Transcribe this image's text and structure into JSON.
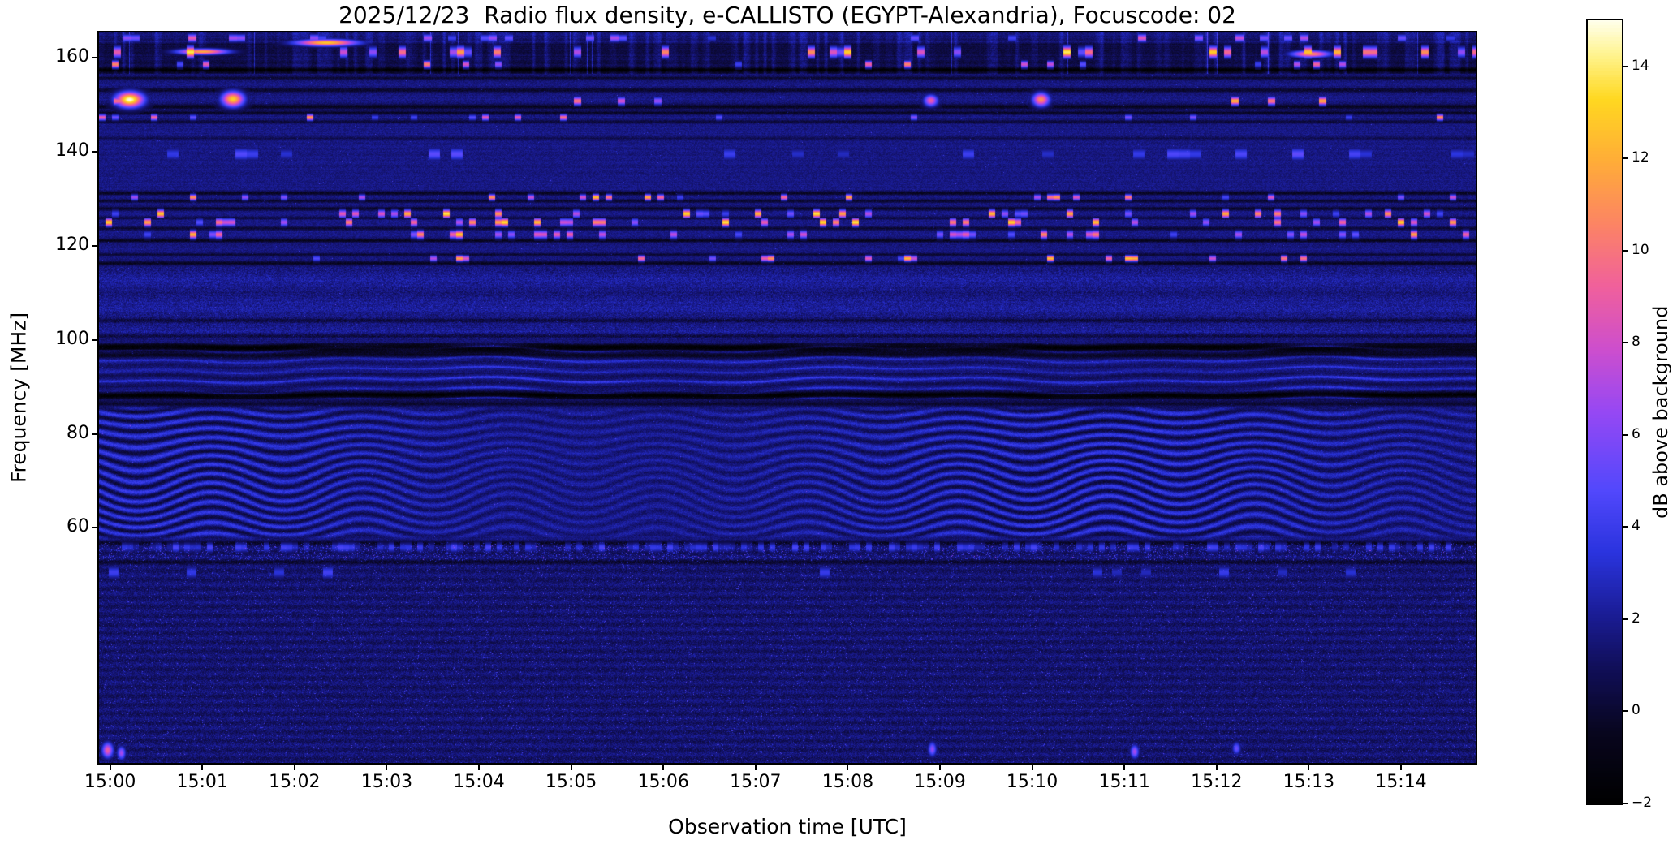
{
  "chart_data": {
    "type": "heatmap",
    "title": "2025/12/23  Radio flux density, e-CALLISTO (EGYPT-Alexandria), Focuscode: 02",
    "xlabel": "Observation time [UTC]",
    "ylabel": "Frequency [MHz]",
    "x_ticks": [
      "15:00",
      "15:01",
      "15:02",
      "15:03",
      "15:04",
      "15:05",
      "15:06",
      "15:07",
      "15:08",
      "15:09",
      "15:10",
      "15:11",
      "15:12",
      "15:13",
      "15:14"
    ],
    "y_ticks_mhz": [
      160,
      140,
      120,
      100,
      80,
      60
    ],
    "y_range_mhz": [
      10.0,
      165.4
    ],
    "time_axis": {
      "start_offset_min": 0.12,
      "duration_min": 14.93
    },
    "colorbar": {
      "label": "dB above background",
      "ticks": [
        14,
        12,
        10,
        8,
        6,
        4,
        2,
        0,
        -2
      ],
      "range": [
        -2,
        15
      ]
    },
    "features": {
      "background": {
        "base_db": 1.75,
        "noise_db": 1.1
      },
      "value_range_db": [
        -2,
        15
      ],
      "colormap_stops": [
        [
          0,
          [
            0,
            0,
            0
          ]
        ],
        [
          0.09,
          [
            8,
            6,
            30
          ]
        ],
        [
          0.17,
          [
            16,
            14,
            86
          ]
        ],
        [
          0.24,
          [
            26,
            28,
            148
          ]
        ],
        [
          0.32,
          [
            42,
            52,
            222
          ]
        ],
        [
          0.4,
          [
            82,
            72,
            252
          ]
        ],
        [
          0.5,
          [
            150,
            72,
            244
          ]
        ],
        [
          0.58,
          [
            205,
            78,
            205
          ]
        ],
        [
          0.66,
          [
            240,
            96,
            156
          ]
        ],
        [
          0.74,
          [
            252,
            132,
            100
          ]
        ],
        [
          0.82,
          [
            255,
            172,
            56
          ]
        ],
        [
          0.9,
          [
            255,
            216,
            32
          ]
        ],
        [
          0.96,
          [
            255,
            245,
            150
          ]
        ],
        [
          1,
          [
            255,
            255,
            236
          ]
        ]
      ],
      "rfi_dash_lines": [
        {
          "f": 164.3,
          "hw": 0.8,
          "density": 0.18,
          "cell": 10,
          "vmin": 3,
          "vmax": 9
        },
        {
          "f": 161.3,
          "hw": 1.1,
          "density": 0.16,
          "cell": 9,
          "vmin": 5,
          "vmax": 15
        },
        {
          "f": 158.7,
          "hw": 0.7,
          "density": 0.07,
          "cell": 8,
          "vmin": 4,
          "vmax": 11
        },
        {
          "f": 150.9,
          "hw": 0.8,
          "density": 0.06,
          "cell": 9,
          "vmin": 4,
          "vmax": 13
        },
        {
          "f": 147.4,
          "hw": 0.6,
          "density": 0.07,
          "cell": 8,
          "vmin": 4,
          "vmax": 12
        },
        {
          "f": 139.6,
          "hw": 1.3,
          "density": 0.12,
          "cell": 14,
          "vmin": 2.8,
          "vmax": 5.2
        },
        {
          "f": 130.4,
          "hw": 0.6,
          "density": 0.13,
          "cell": 8,
          "vmin": 4,
          "vmax": 13
        },
        {
          "f": 126.9,
          "hw": 0.8,
          "density": 0.2,
          "cell": 8,
          "vmin": 4,
          "vmax": 14
        },
        {
          "f": 125.1,
          "hw": 0.8,
          "density": 0.2,
          "cell": 8,
          "vmin": 4,
          "vmax": 14
        },
        {
          "f": 122.5,
          "hw": 0.8,
          "density": 0.16,
          "cell": 8,
          "vmin": 4,
          "vmax": 13
        },
        {
          "f": 117.4,
          "hw": 0.6,
          "density": 0.11,
          "cell": 8,
          "vmin": 4,
          "vmax": 13
        },
        {
          "f": 55.9,
          "hw": 1.0,
          "density": 0.45,
          "cell": 7,
          "vmin": 2.2,
          "vmax": 4.6
        },
        {
          "f": 50.6,
          "hw": 1.3,
          "density": 0.08,
          "cell": 12,
          "vmin": 2.4,
          "vmax": 4.4
        }
      ],
      "dark_lanes": [
        {
          "f": 157.5,
          "w": 0.5,
          "s": 2.2
        },
        {
          "f": 155.8,
          "w": 0.4,
          "s": 1.6
        },
        {
          "f": 153.2,
          "w": 0.5,
          "s": 1.8
        },
        {
          "f": 149.7,
          "w": 0.5,
          "s": 2.4
        },
        {
          "f": 148.4,
          "w": 0.4,
          "s": 2.0
        },
        {
          "f": 146.5,
          "w": 0.4,
          "s": 1.6
        },
        {
          "f": 143.0,
          "w": 0.4,
          "s": 1.0
        },
        {
          "f": 131.3,
          "w": 0.4,
          "s": 2.2
        },
        {
          "f": 129.6,
          "w": 0.35,
          "s": 1.8
        },
        {
          "f": 128.0,
          "w": 0.4,
          "s": 2.0
        },
        {
          "f": 126.0,
          "w": 0.3,
          "s": 1.5
        },
        {
          "f": 123.8,
          "w": 0.35,
          "s": 1.8
        },
        {
          "f": 121.2,
          "w": 0.45,
          "s": 2.2
        },
        {
          "f": 118.2,
          "w": 0.4,
          "s": 1.6
        },
        {
          "f": 116.4,
          "w": 0.45,
          "s": 2.2
        },
        {
          "f": 104.2,
          "w": 0.4,
          "s": 1.2
        },
        {
          "f": 100.9,
          "w": 0.5,
          "s": 1.6
        },
        {
          "f": 98.3,
          "w": 0.9,
          "s": 3.0
        },
        {
          "f": 96.8,
          "w": 0.5,
          "s": 1.6
        },
        {
          "f": 88.3,
          "w": 0.9,
          "s": 2.6
        },
        {
          "f": 86.5,
          "w": 0.5,
          "s": 1.8
        },
        {
          "f": 57.0,
          "w": 0.5,
          "s": 1.4
        },
        {
          "f": 52.8,
          "w": 0.5,
          "s": 1.1
        }
      ],
      "fm_broadcast_band": {
        "fmin_mhz": 87.4,
        "fmax_mhz": 99.4,
        "stripe_k": 2.9,
        "gain_db": 2.4
      },
      "mid_texture_band": {
        "fmin_mhz": 100.2,
        "fmax_mhz": 115.6,
        "gain_db": 1.25
      },
      "ionospheric_fringes": {
        "fmin_mhz": 57.3,
        "fmax_mhz": 86.2,
        "k": 3.05,
        "amp_db": 1.45,
        "wave1": 6.6,
        "wave1_rate": 58,
        "wave2": 2.8,
        "wave2_rate": 12.5
      },
      "top_band": {
        "fmin_mhz": 156.6,
        "base_db": 0.5,
        "streak_gain_db": 2.6
      },
      "low_band": {
        "fmax_mhz": 57.0,
        "base_db": 1.35
      },
      "bright_blobs": [
        {
          "t": 0.022,
          "f": 151.2,
          "wt": 0.01,
          "wf": 1.6,
          "v": 15
        },
        {
          "t": 0.097,
          "f": 151.3,
          "wt": 0.008,
          "wf": 1.6,
          "v": 13
        },
        {
          "t": 0.604,
          "f": 151.0,
          "wt": 0.005,
          "wf": 1.2,
          "v": 9
        },
        {
          "t": 0.684,
          "f": 151.2,
          "wt": 0.006,
          "wf": 1.4,
          "v": 11
        },
        {
          "t": 0.165,
          "f": 163.3,
          "wt": 0.022,
          "wf": 0.7,
          "v": 13
        },
        {
          "t": 0.075,
          "f": 161.4,
          "wt": 0.018,
          "wf": 0.6,
          "v": 12
        },
        {
          "t": 0.88,
          "f": 160.9,
          "wt": 0.014,
          "wf": 0.7,
          "v": 11
        },
        {
          "t": 0.006,
          "f": 12.8,
          "wt": 0.004,
          "wf": 1.6,
          "v": 9
        },
        {
          "t": 0.016,
          "f": 12.2,
          "wt": 0.003,
          "wf": 1.4,
          "v": 7
        },
        {
          "t": 0.605,
          "f": 13.0,
          "wt": 0.003,
          "wf": 1.5,
          "v": 6.5
        },
        {
          "t": 0.752,
          "f": 12.5,
          "wt": 0.003,
          "wf": 1.4,
          "v": 7
        },
        {
          "t": 0.826,
          "f": 13.2,
          "wt": 0.003,
          "wf": 1.3,
          "v": 5.5
        }
      ]
    }
  }
}
